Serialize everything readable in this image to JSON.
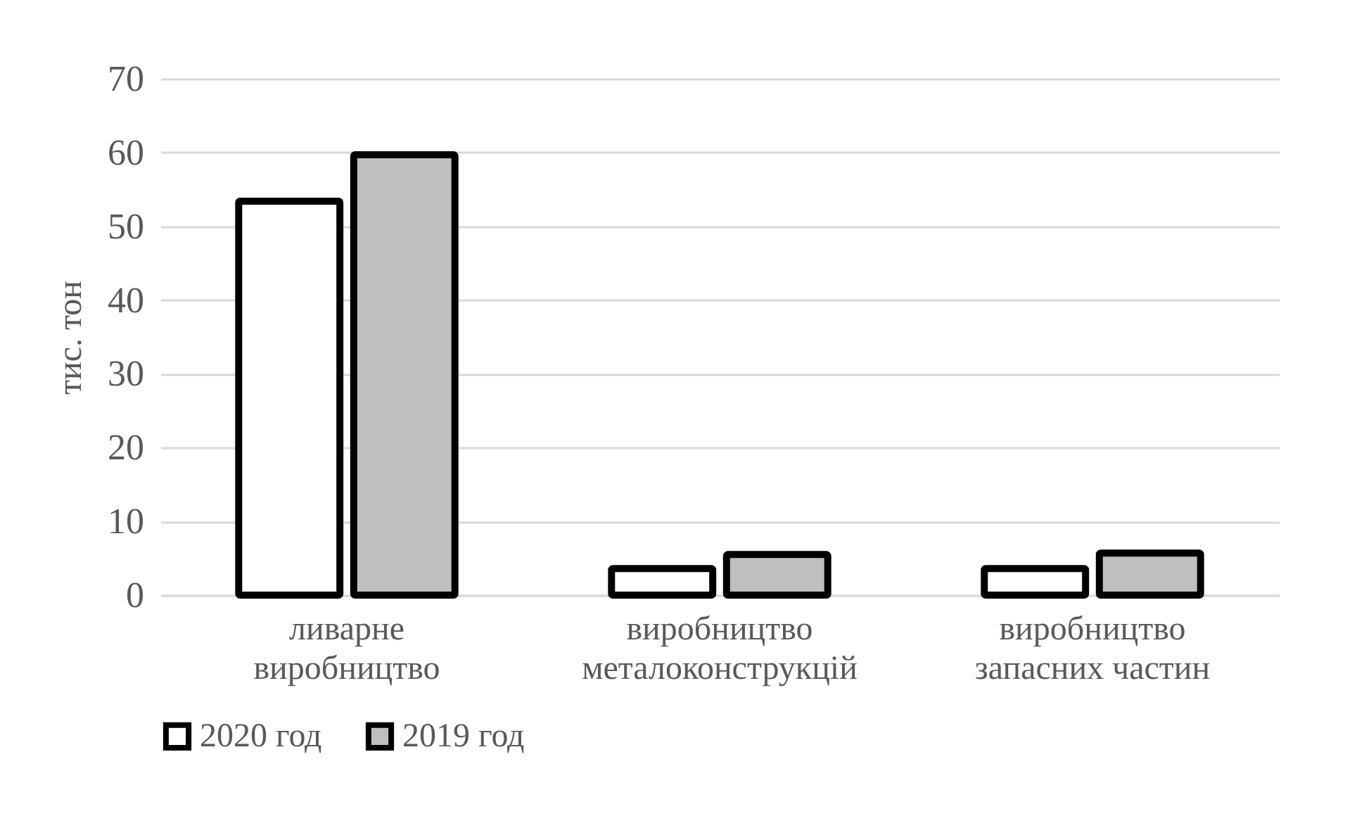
{
  "chart_data": {
    "type": "bar",
    "ylabel": "тис. тон",
    "categories": [
      "ливарне виробництво",
      "виробництво металоконструкцій",
      "виробництво запасних частин"
    ],
    "series": [
      {
        "name": "2020 год",
        "color": "#ffffff",
        "values": [
          53.4,
          3.6,
          3.6
        ]
      },
      {
        "name": "2019 год",
        "color": "#bfbfbf",
        "values": [
          59.7,
          5.5,
          5.7
        ]
      }
    ],
    "ylim": [
      0,
      70
    ],
    "yticks": [
      0,
      10,
      20,
      30,
      40,
      50,
      60,
      70
    ],
    "grid": "y",
    "legend": "bottom"
  }
}
